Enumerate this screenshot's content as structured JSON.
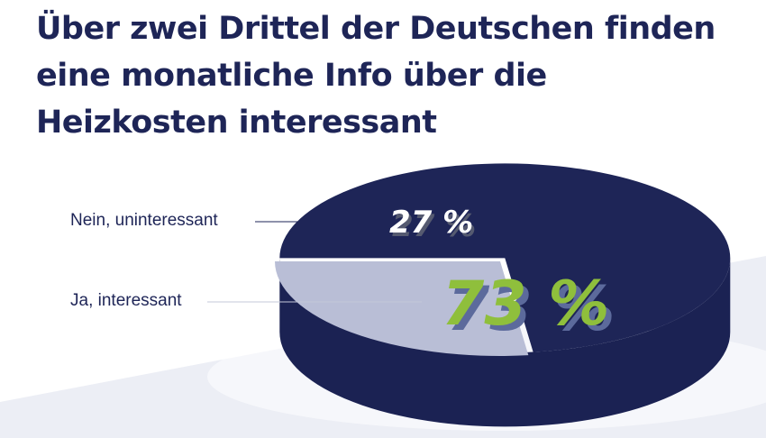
{
  "title": "Über zwei Drittel der Deutschen finden eine monatliche Info über die Heizkosten interessant",
  "chart_data": {
    "type": "pie",
    "title": "Über zwei Drittel der Deutschen finden eine monatliche Info über die Heizkosten interessant",
    "slices": [
      {
        "label": "Nein, uninteressant",
        "value": 27,
        "display": "27 %",
        "color": "#b9bed6",
        "text_color": "#ffffff"
      },
      {
        "label": "Ja, interessant",
        "value": 73,
        "display": "73 %",
        "color": "#1e2557",
        "text_color": "#8fbf3c"
      }
    ],
    "unit": "%",
    "legend": "leader-lines-left"
  }
}
